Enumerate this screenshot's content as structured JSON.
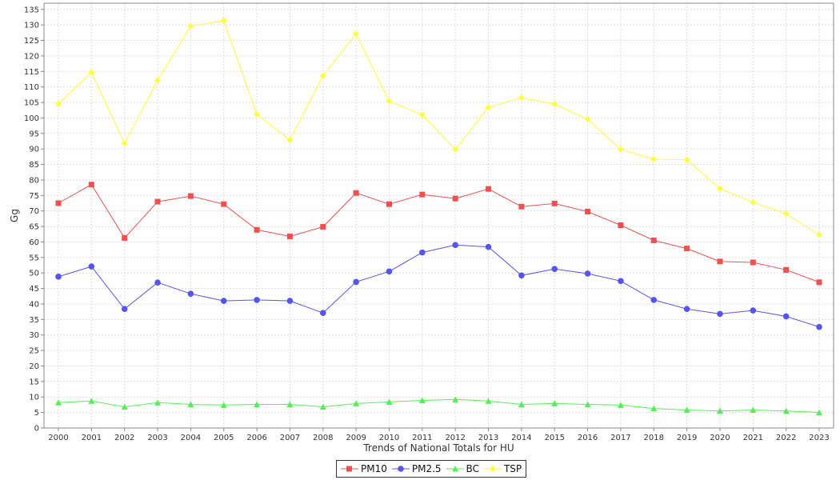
{
  "chart_data": {
    "type": "line",
    "title": "",
    "xlabel": "Trends of National Totals for HU",
    "ylabel": "Gg",
    "ylim": [
      0,
      137
    ],
    "yticks": [
      0,
      5,
      10,
      15,
      20,
      25,
      30,
      35,
      40,
      45,
      50,
      55,
      60,
      65,
      70,
      75,
      80,
      85,
      90,
      95,
      100,
      105,
      110,
      115,
      120,
      125,
      130,
      135
    ],
    "grid": true,
    "legend_position": "bottom-center",
    "categories": [
      "2000",
      "2001",
      "2002",
      "2003",
      "2004",
      "2005",
      "2006",
      "2007",
      "2008",
      "2009",
      "2010",
      "2011",
      "2012",
      "2013",
      "2014",
      "2015",
      "2016",
      "2017",
      "2018",
      "2019",
      "2020",
      "2021",
      "2022",
      "2023"
    ],
    "series": [
      {
        "name": "PM10",
        "color": "#f05050",
        "marker": "square",
        "values": [
          72.5,
          78.5,
          61.3,
          73.0,
          74.8,
          72.2,
          63.9,
          61.8,
          64.9,
          75.8,
          72.2,
          75.3,
          74.0,
          77.1,
          71.4,
          72.4,
          69.8,
          65.4,
          60.5,
          57.9,
          53.7,
          53.4,
          51.0,
          47.0
        ]
      },
      {
        "name": "PM2.5",
        "color": "#5555f0",
        "marker": "circle",
        "values": [
          48.8,
          52.1,
          38.4,
          46.9,
          43.3,
          41.0,
          41.3,
          41.0,
          37.1,
          47.1,
          50.5,
          56.6,
          59.0,
          58.4,
          49.2,
          51.3,
          49.8,
          47.4,
          41.3,
          38.4,
          36.8,
          37.9,
          36.0,
          32.6
        ]
      },
      {
        "name": "BC",
        "color": "#55f055",
        "marker": "triangle",
        "values": [
          8.2,
          8.7,
          6.8,
          8.2,
          7.6,
          7.4,
          7.6,
          7.6,
          6.8,
          7.9,
          8.4,
          8.9,
          9.2,
          8.7,
          7.6,
          7.9,
          7.6,
          7.4,
          6.3,
          5.8,
          5.5,
          5.8,
          5.5,
          5.0
        ]
      },
      {
        "name": "TSP",
        "color": "#ffff40",
        "marker": "diamond",
        "values": [
          104.5,
          114.7,
          91.8,
          112.1,
          129.6,
          131.4,
          101.2,
          92.9,
          113.6,
          127.1,
          105.4,
          101.0,
          89.9,
          103.4,
          106.5,
          104.5,
          99.6,
          89.9,
          86.7,
          86.5,
          77.2,
          72.8,
          69.1,
          62.3
        ]
      }
    ]
  }
}
